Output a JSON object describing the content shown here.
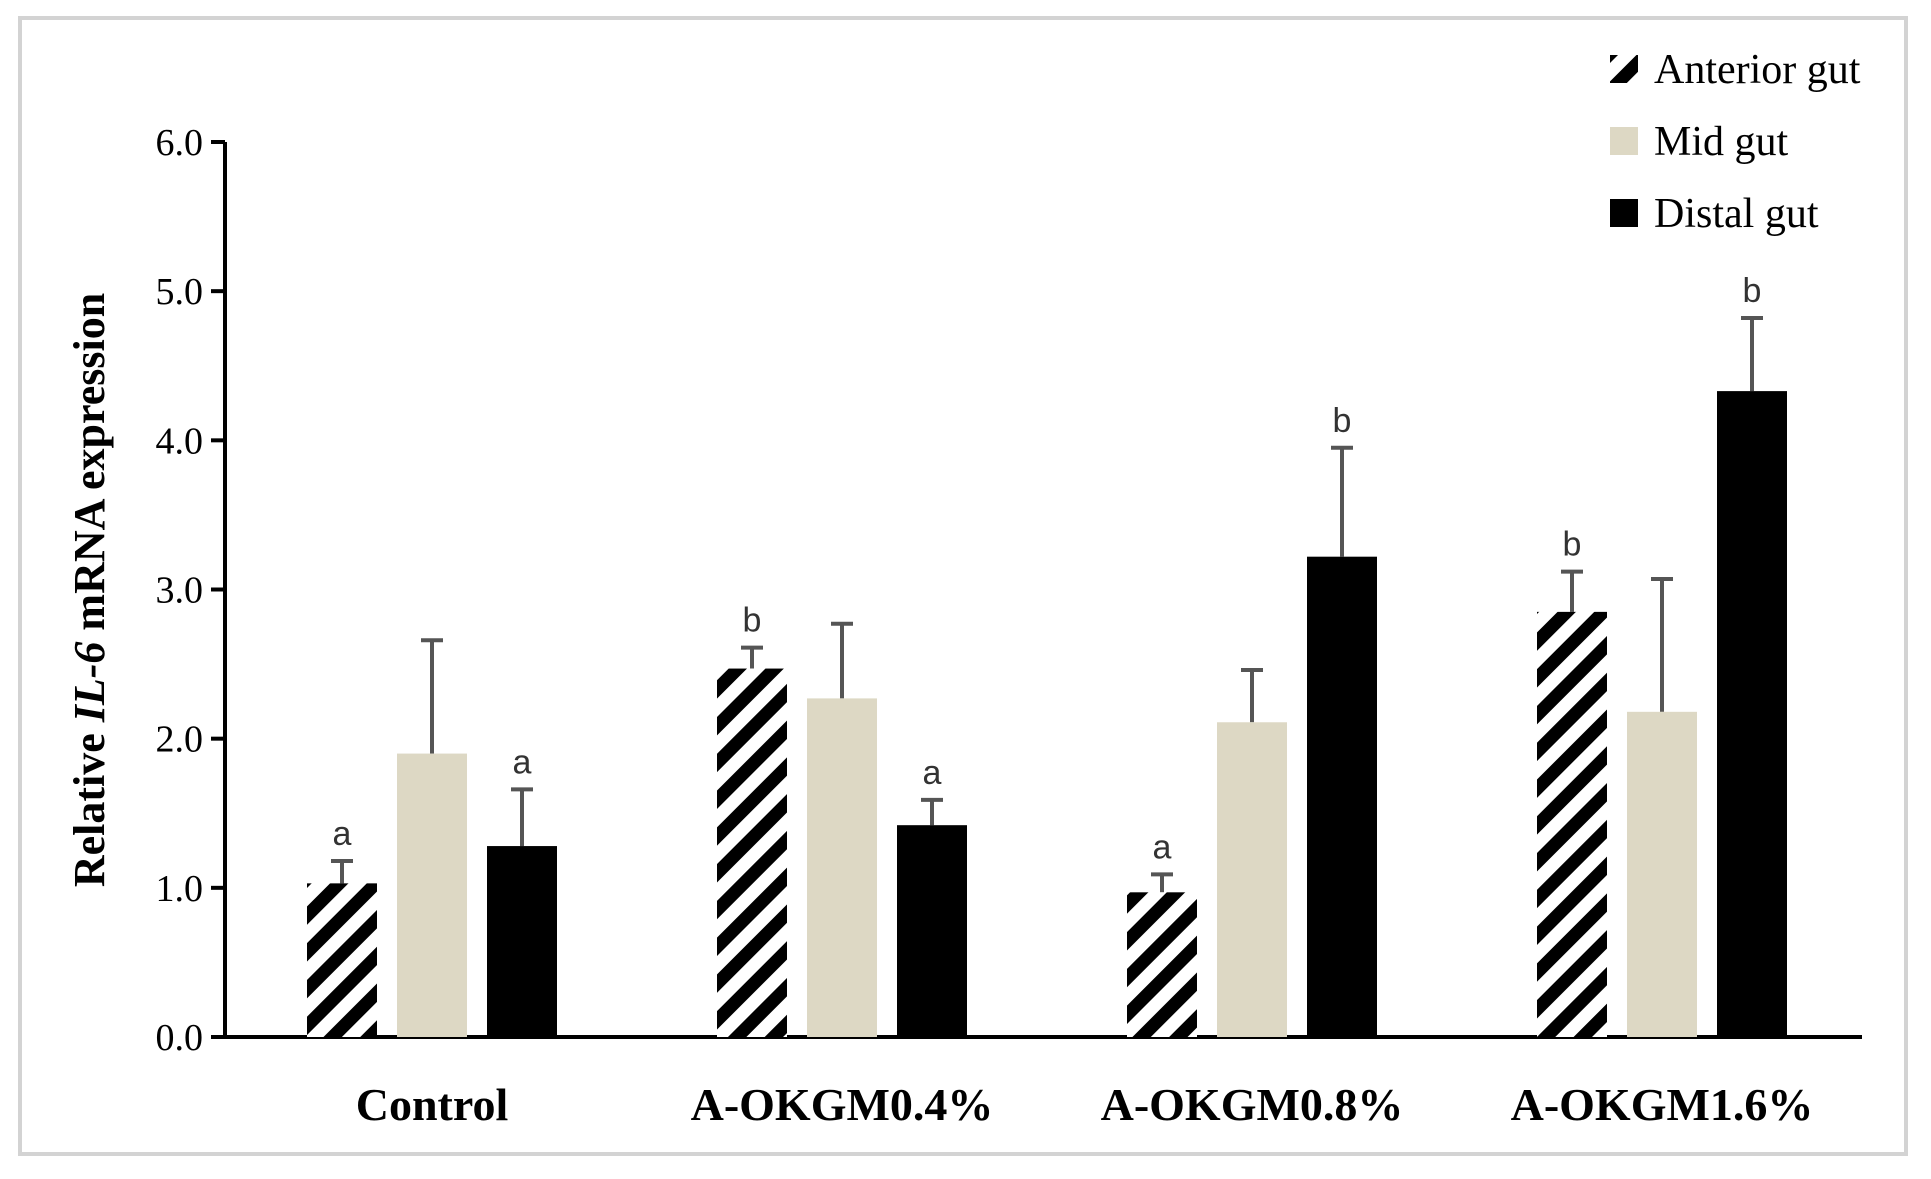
{
  "chart_data": {
    "type": "bar",
    "categories": [
      "Control",
      "A-OKGM0.4%",
      "A-OKGM0.8%",
      "A-OKGM1.6%"
    ],
    "ylabel_parts": [
      "Relative ",
      "IL-6",
      " mRNA expression"
    ],
    "ylim": [
      0,
      6
    ],
    "yticks": [
      "0.0",
      "1.0",
      "2.0",
      "3.0",
      "4.0",
      "5.0",
      "6.0"
    ],
    "legend_position": "top-right",
    "series": [
      {
        "name": "Anterior gut",
        "pattern": "hatch",
        "color": "#000000",
        "values": [
          1.03,
          2.47,
          0.97,
          2.85
        ],
        "errors": [
          0.15,
          0.14,
          0.12,
          0.27
        ],
        "sig": [
          "a",
          "b",
          "a",
          "b"
        ]
      },
      {
        "name": "Mid gut",
        "pattern": "solid",
        "color": "#ddd8c4",
        "values": [
          1.9,
          2.27,
          2.11,
          2.18
        ],
        "errors": [
          0.76,
          0.5,
          0.35,
          0.89
        ],
        "sig": [
          "",
          "",
          "",
          ""
        ]
      },
      {
        "name": "Distal gut",
        "pattern": "solid",
        "color": "#000000",
        "values": [
          1.28,
          1.42,
          3.22,
          4.33
        ],
        "errors": [
          0.38,
          0.17,
          0.73,
          0.49
        ],
        "sig": [
          "a",
          "a",
          "b",
          "b"
        ]
      }
    ]
  }
}
